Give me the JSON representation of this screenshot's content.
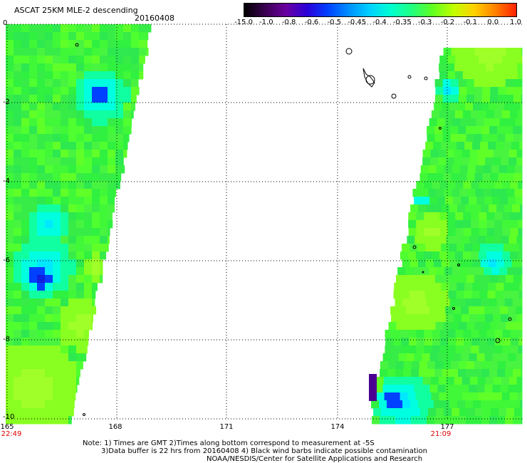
{
  "header": {
    "title": "ASCAT 25KM MLE-2 descending",
    "date": "20160408"
  },
  "colorbar": {
    "tick_labels": [
      "-15.0",
      "-1.0",
      "-0.8",
      "-0.6",
      "-0.5",
      "-0.45",
      "-0.4",
      "-0.35",
      "-0.3",
      "-0.2",
      "-0.1",
      "0.0",
      "1.0"
    ],
    "colors": [
      "#000000",
      "#3a0050",
      "#6a00a0",
      "#2a00d8",
      "#0040ff",
      "#0090ff",
      "#00d0ff",
      "#00ffd0",
      "#20ff80",
      "#60ff20",
      "#c0ff00",
      "#ffd000",
      "#ff8000",
      "#ff2000"
    ]
  },
  "axes": {
    "lat_labels": [
      "0",
      "-2",
      "-4",
      "-6",
      "-8",
      "-10"
    ],
    "lon_labels": [
      "165",
      "168",
      "171",
      "174",
      "177"
    ],
    "time_labels": [
      "22:49",
      "21:09"
    ]
  },
  "notes": {
    "line1": "Note: 1) Times are GMT 2)Times along bottom correspond to measurement at -5S",
    "line2": "3)Data buffer is 22 hrs from 20160408 4) Black wind barbs indicate possible contamination",
    "line3": "NOAA/NESDIS/Center for Satellite Applications and Research"
  },
  "colors": {
    "swath_base": "#3cf23c",
    "swath_light": "#a0ff28",
    "swath_cyan": "#00ffe0",
    "swath_blue": "#0040ff",
    "grid": "#000000",
    "time_text": "#e00000"
  }
}
